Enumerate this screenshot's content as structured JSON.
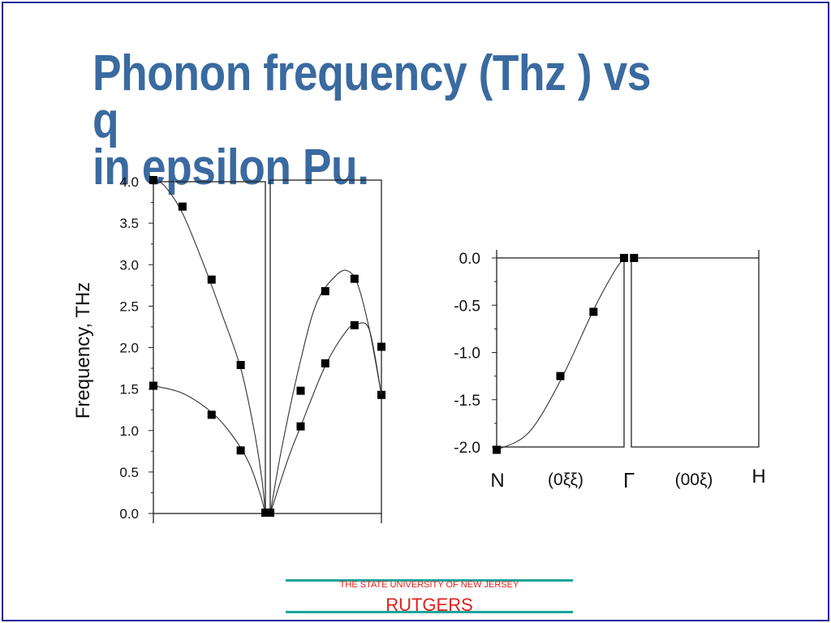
{
  "slide": {
    "title_line1": "Phonon frequency (Thz ) vs q",
    "title_line2": "in epsilon Pu.",
    "accent_color": "#3a6aa0",
    "border_color": "#1f1f9a"
  },
  "logo": {
    "tagline": "THE STATE UNIVERSITY OF NEW JERSEY",
    "name": "RUTGERS",
    "text_color": "#e0201a",
    "bar_color": "#1aa59a"
  },
  "chart_data": [
    {
      "type": "scatter",
      "ylabel": "Frequency,  THz",
      "ylim": [
        0,
        4.0
      ],
      "yticks": [
        "0.0",
        "0.5",
        "1.0",
        "1.5",
        "2.0",
        "2.5",
        "3.0",
        "3.5",
        "4.0"
      ],
      "grid": false,
      "panels": 2,
      "series": [
        {
          "values": [
            [
              0.0,
              4.02
            ],
            [
              0.26,
              3.7
            ],
            [
              0.52,
              2.82
            ],
            [
              0.78,
              1.79
            ],
            [
              1.0,
              0.01
            ]
          ],
          "curve": [
            [
              0.0,
              4.02
            ],
            [
              0.1,
              3.95
            ],
            [
              0.26,
              3.62
            ],
            [
              0.45,
              3.0
            ],
            [
              0.6,
              2.45
            ],
            [
              0.78,
              1.75
            ],
            [
              0.9,
              1.0
            ],
            [
              0.97,
              0.4
            ],
            [
              1.0,
              0.0
            ]
          ]
        },
        {
          "values": [
            [
              0.0,
              1.54
            ],
            [
              0.52,
              1.19
            ],
            [
              0.78,
              0.76
            ],
            [
              1.0,
              0.01
            ]
          ],
          "curve": [
            [
              0.0,
              1.54
            ],
            [
              0.26,
              1.45
            ],
            [
              0.52,
              1.22
            ],
            [
              0.7,
              0.95
            ],
            [
              0.85,
              0.62
            ],
            [
              0.95,
              0.25
            ],
            [
              1.0,
              0.0
            ]
          ]
        },
        {
          "values": [
            [
              1.05,
              0.01
            ],
            [
              1.31,
              1.48
            ],
            [
              1.52,
              2.68
            ],
            [
              1.77,
              2.83
            ],
            [
              2.0,
              1.43
            ]
          ],
          "curve": [
            [
              1.05,
              0.0
            ],
            [
              1.15,
              0.8
            ],
            [
              1.31,
              1.85
            ],
            [
              1.45,
              2.55
            ],
            [
              1.62,
              2.88
            ],
            [
              1.72,
              2.92
            ],
            [
              1.8,
              2.75
            ],
            [
              1.9,
              2.2
            ],
            [
              2.0,
              1.43
            ]
          ]
        },
        {
          "values": [
            [
              1.05,
              0.01
            ],
            [
              1.31,
              1.05
            ],
            [
              1.52,
              1.81
            ],
            [
              1.77,
              2.27
            ],
            [
              2.0,
              2.01
            ]
          ],
          "curve": [
            [
              1.05,
              0.0
            ],
            [
              1.2,
              0.65
            ],
            [
              1.31,
              1.05
            ],
            [
              1.52,
              1.78
            ],
            [
              1.7,
              2.2
            ],
            [
              1.8,
              2.29
            ],
            [
              1.9,
              2.2
            ],
            [
              2.0,
              1.43
            ]
          ]
        }
      ]
    },
    {
      "type": "scatter",
      "ylim": [
        -2.0,
        0.0
      ],
      "yticks": [
        "-2.0",
        "-1.5",
        "-1.0",
        "-0.5",
        "0.0"
      ],
      "xtick_labels": [
        "N",
        "(0ξξ)",
        "Γ",
        "(00ξ)",
        "H"
      ],
      "grid": false,
      "panels": 2,
      "series": [
        {
          "values": [
            [
              0.0,
              -2.03
            ],
            [
              0.5,
              -1.25
            ],
            [
              0.76,
              -0.57
            ],
            [
              1.0,
              0.0
            ],
            [
              1.07,
              0.0
            ]
          ],
          "curve": [
            [
              0.0,
              -2.03
            ],
            [
              0.25,
              -1.85
            ],
            [
              0.5,
              -1.3
            ],
            [
              0.76,
              -0.55
            ],
            [
              0.92,
              -0.15
            ],
            [
              1.0,
              0.0
            ]
          ]
        }
      ]
    }
  ]
}
